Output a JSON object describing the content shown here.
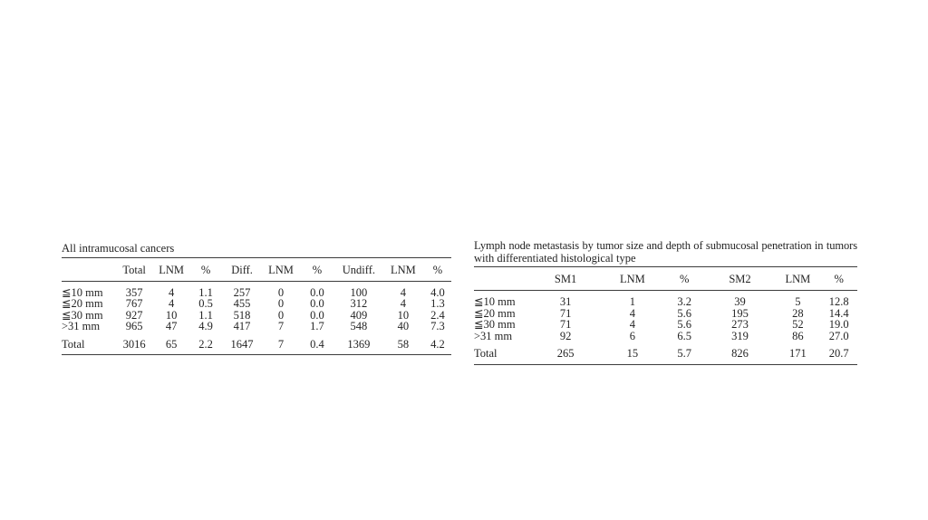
{
  "page": {
    "background": "#ffffff",
    "text_color": "#242424",
    "rule_color": "#3c3c3c"
  },
  "tables": [
    {
      "title_lines": [
        "All intramucosal cancers"
      ],
      "columns": [
        "",
        "Total",
        "LNM",
        "%",
        "Diff.",
        "LNM",
        "%",
        "Undiff.",
        "LNM",
        "%"
      ],
      "rows": [
        [
          "≦10 mm",
          "357",
          "4",
          "1.1",
          "257",
          "0",
          "0.0",
          "100",
          "4",
          "4.0"
        ],
        [
          "≦20 mm",
          "767",
          "4",
          "0.5",
          "455",
          "0",
          "0.0",
          "312",
          "4",
          "1.3"
        ],
        [
          "≦30 mm",
          "927",
          "10",
          "1.1",
          "518",
          "0",
          "0.0",
          "409",
          "10",
          "2.4"
        ],
        [
          ">31 mm",
          "965",
          "47",
          "4.9",
          "417",
          "7",
          "1.7",
          "548",
          "40",
          "7.3"
        ]
      ],
      "total_row": [
        "Total",
        "3016",
        "65",
        "2.2",
        "1647",
        "7",
        "0.4",
        "1369",
        "58",
        "4.2"
      ]
    },
    {
      "title_lines": [
        "Lymph node metastasis by tumor size and depth of submucosal penetration in tumors",
        "with differentiated histological type"
      ],
      "columns": [
        "",
        "SM1",
        "LNM",
        "%",
        "SM2",
        "LNM",
        "%"
      ],
      "rows": [
        [
          "≦10 mm",
          "31",
          "1",
          "3.2",
          "39",
          "5",
          "12.8"
        ],
        [
          "≦20 mm",
          "71",
          "4",
          "5.6",
          "195",
          "28",
          "14.4"
        ],
        [
          "≦30 mm",
          "71",
          "4",
          "5.6",
          "273",
          "52",
          "19.0"
        ],
        [
          ">31 mm",
          "92",
          "6",
          "6.5",
          "319",
          "86",
          "27.0"
        ]
      ],
      "total_row": [
        "Total",
        "265",
        "15",
        "5.7",
        "826",
        "171",
        "20.7"
      ]
    }
  ]
}
